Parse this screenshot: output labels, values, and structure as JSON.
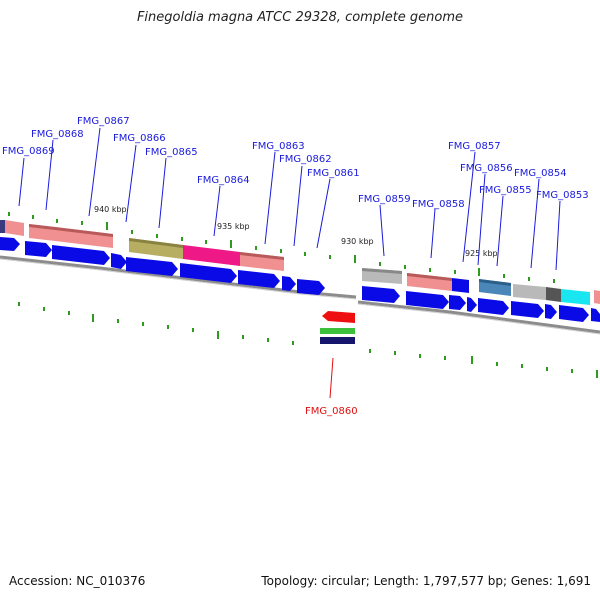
{
  "title": "Finegoldia magna ATCC 29328, complete genome",
  "accession": "Accession: NC_010376",
  "topology": "Topology: circular; Length: 1,797,577 bp; Genes: 1,691",
  "colors": {
    "cds": "#0a0ae6",
    "backbone": "#8c8c8c",
    "tick": "#2e9b1e",
    "label": "#1a1adc",
    "highlight": "#e01010"
  },
  "scale_labels": [
    "940 kbp",
    "935 kbp",
    "930 kbp",
    "925 kbp"
  ],
  "gene_labels": [
    {
      "id": "FMG_0869"
    },
    {
      "id": "FMG_0868"
    },
    {
      "id": "FMG_0867"
    },
    {
      "id": "FMG_0866"
    },
    {
      "id": "FMG_0865"
    },
    {
      "id": "FMG_0864"
    },
    {
      "id": "FMG_0863"
    },
    {
      "id": "FMG_0862"
    },
    {
      "id": "FMG_0861"
    },
    {
      "id": "FMG_0860",
      "highlight": true
    },
    {
      "id": "FMG_0859"
    },
    {
      "id": "FMG_0858"
    },
    {
      "id": "FMG_0857"
    },
    {
      "id": "FMG_0856"
    },
    {
      "id": "FMG_0855"
    },
    {
      "id": "FMG_0854"
    },
    {
      "id": "FMG_0853"
    }
  ]
}
